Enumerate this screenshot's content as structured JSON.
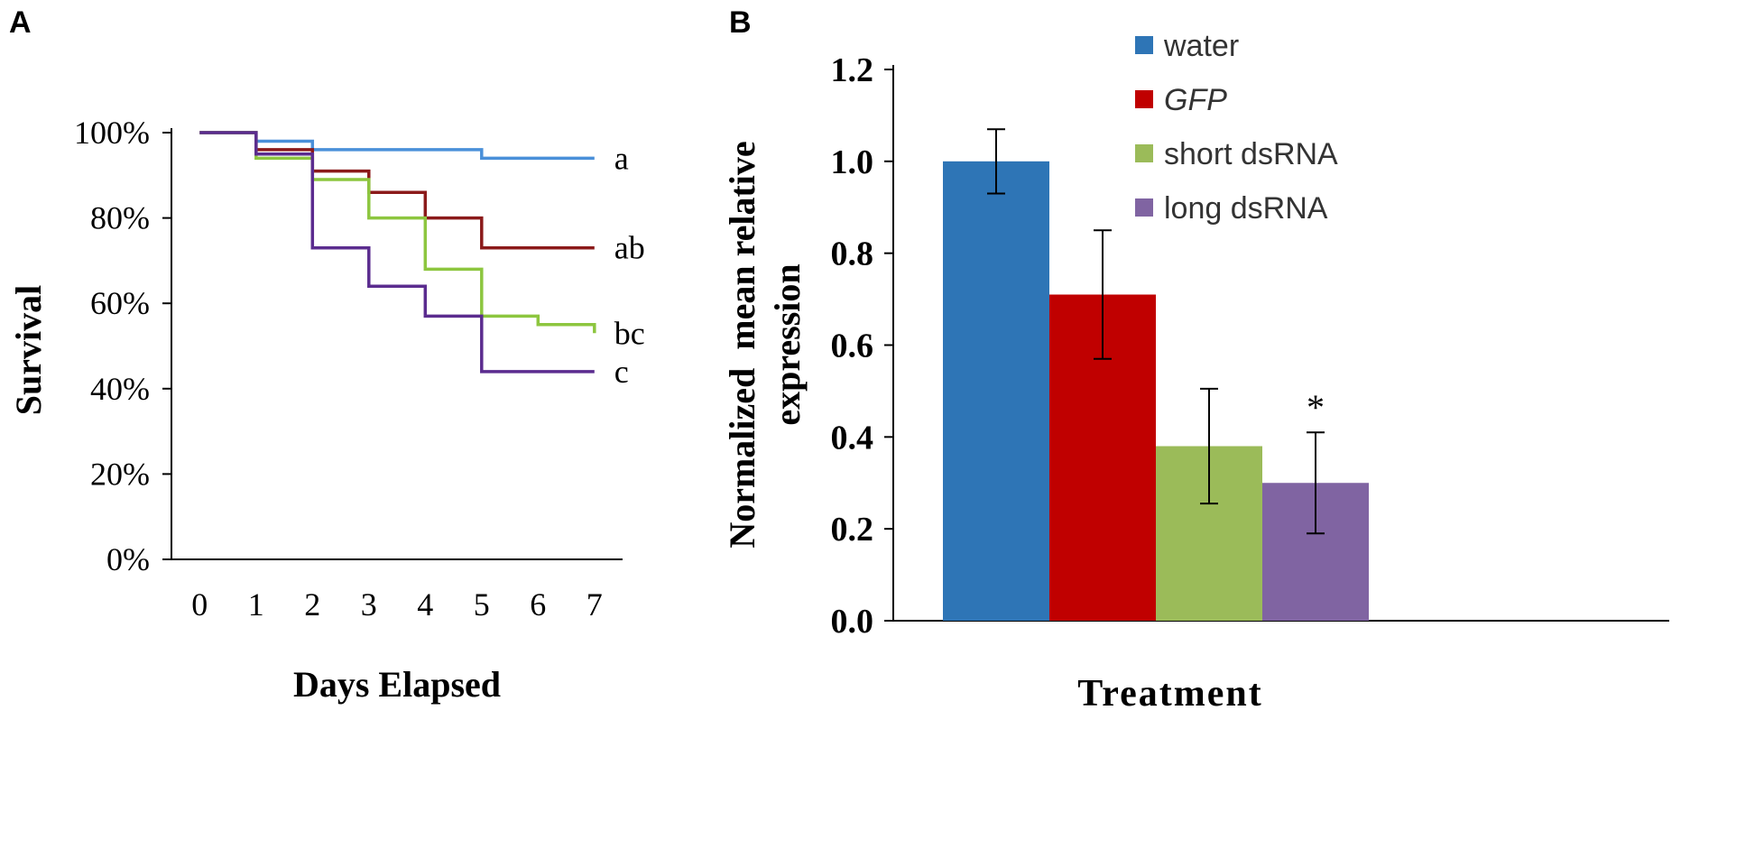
{
  "chart_data": [
    {
      "panel": "A",
      "type": "line",
      "step": true,
      "title": "",
      "xlabel": "Days Elapsed",
      "ylabel": "Survival",
      "xlim": [
        -0.5,
        7.5
      ],
      "ylim": [
        0,
        100
      ],
      "x_ticks": [
        0,
        1,
        2,
        3,
        4,
        5,
        6,
        7
      ],
      "y_ticks": [
        0,
        20,
        40,
        60,
        80,
        100
      ],
      "y_tick_labels": [
        "0%",
        "20%",
        "40%",
        "60%",
        "80%",
        "100%"
      ],
      "series": [
        {
          "name": "water",
          "color": "#4a90d9",
          "label": "a",
          "points": [
            [
              0,
              100
            ],
            [
              1,
              100
            ],
            [
              1,
              98
            ],
            [
              2,
              98
            ],
            [
              2,
              96
            ],
            [
              5,
              96
            ],
            [
              5,
              94
            ],
            [
              7,
              94
            ]
          ]
        },
        {
          "name": "GFP",
          "color": "#8b1a1a",
          "label": "ab",
          "points": [
            [
              0,
              100
            ],
            [
              1,
              100
            ],
            [
              1,
              96
            ],
            [
              2,
              96
            ],
            [
              2,
              91
            ],
            [
              3,
              91
            ],
            [
              3,
              86
            ],
            [
              4,
              86
            ],
            [
              4,
              80
            ],
            [
              5,
              80
            ],
            [
              5,
              73
            ],
            [
              7,
              73
            ]
          ]
        },
        {
          "name": "short dsRNA",
          "color": "#8dc63f",
          "label": "bc",
          "points": [
            [
              0,
              100
            ],
            [
              1,
              100
            ],
            [
              1,
              94
            ],
            [
              2,
              94
            ],
            [
              2,
              89
            ],
            [
              3,
              89
            ],
            [
              3,
              80
            ],
            [
              4,
              80
            ],
            [
              4,
              68
            ],
            [
              5,
              68
            ],
            [
              5,
              57
            ],
            [
              6,
              57
            ],
            [
              6,
              55
            ],
            [
              7,
              55
            ],
            [
              7,
              53
            ]
          ]
        },
        {
          "name": "long dsRNA",
          "color": "#5b2c8f",
          "label": "c",
          "points": [
            [
              0,
              100
            ],
            [
              1,
              100
            ],
            [
              1,
              95
            ],
            [
              2,
              95
            ],
            [
              2,
              73
            ],
            [
              3,
              73
            ],
            [
              3,
              64
            ],
            [
              4,
              64
            ],
            [
              4,
              57
            ],
            [
              5,
              57
            ],
            [
              5,
              44
            ],
            [
              7,
              44
            ]
          ]
        }
      ]
    },
    {
      "panel": "B",
      "type": "bar",
      "title": "",
      "xlabel": "Treatment",
      "ylabel_line1": "Normalized  mean relative",
      "ylabel_line2": "expression",
      "ylim": [
        0,
        1.2
      ],
      "y_ticks": [
        0.0,
        0.2,
        0.4,
        0.6,
        0.8,
        1.0,
        1.2
      ],
      "y_tick_labels": [
        "0.0",
        "0.2",
        "0.4",
        "0.6",
        "0.8",
        "1.0",
        "1.2"
      ],
      "categories": [
        "water",
        "GFP",
        "short dsRNA",
        "long dsRNA"
      ],
      "values": [
        1.0,
        0.71,
        0.38,
        0.3
      ],
      "error": [
        0.07,
        0.14,
        0.125,
        0.11
      ],
      "colors": [
        "#2e75b6",
        "#c00000",
        "#9bbb59",
        "#8064a2"
      ],
      "annotations": [
        "",
        "",
        "",
        "*"
      ],
      "legend": [
        {
          "label": "water",
          "color": "#2e75b6",
          "italic": false
        },
        {
          "label": "GFP",
          "color": "#c00000",
          "italic": true
        },
        {
          "label": "short dsRNA",
          "color": "#9bbb59",
          "italic": false
        },
        {
          "label": "long dsRNA",
          "color": "#8064a2",
          "italic": false
        }
      ],
      "legend_position": "top-right"
    }
  ],
  "panel_letters": [
    "A",
    "B"
  ]
}
